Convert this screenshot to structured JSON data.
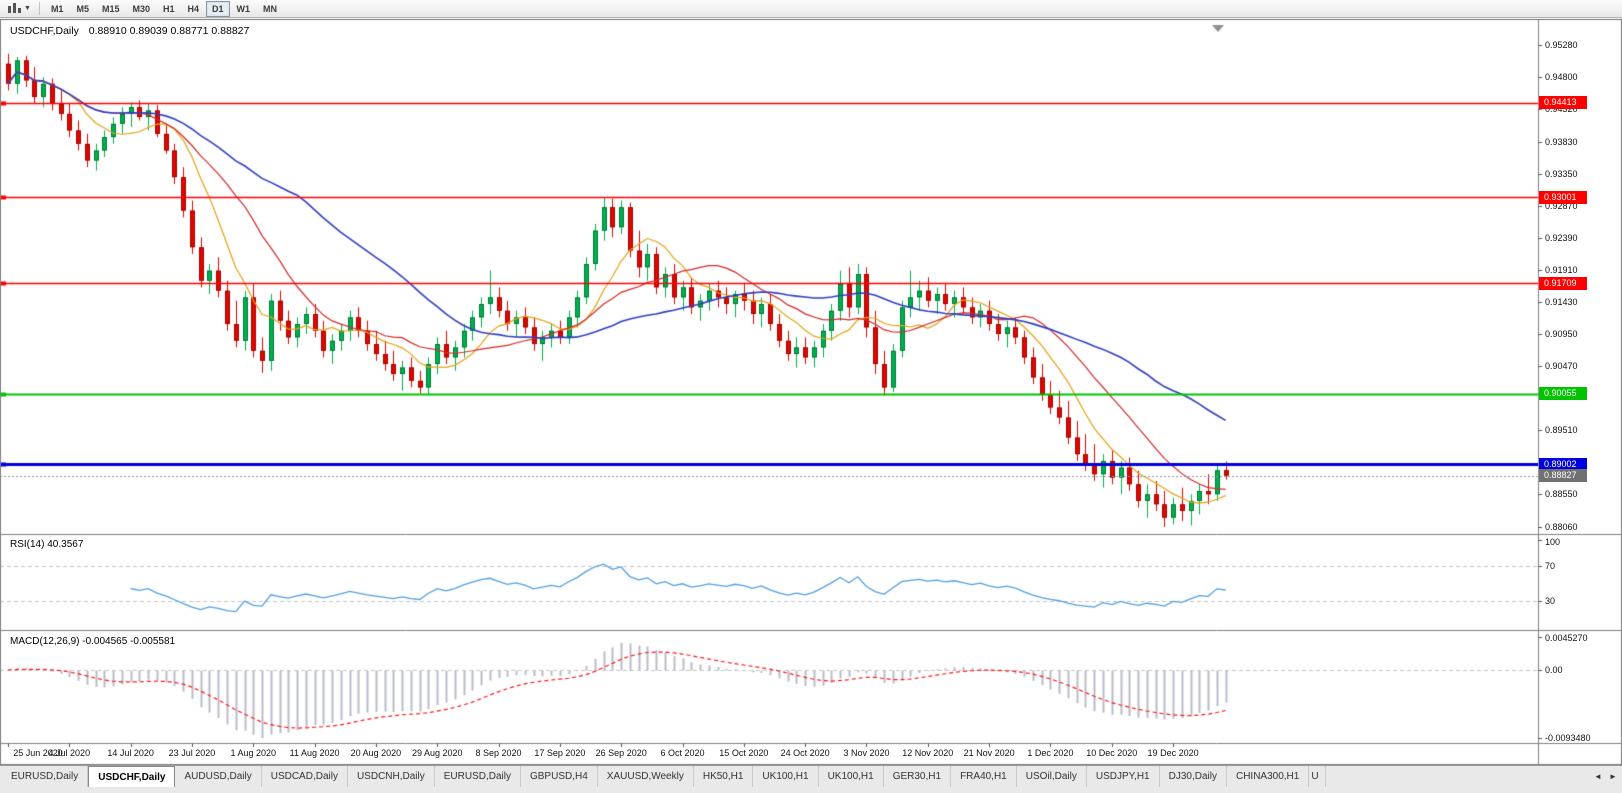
{
  "toolbar": {
    "timeframes": [
      "M1",
      "M5",
      "M15",
      "M30",
      "H1",
      "H4",
      "D1",
      "W1",
      "MN"
    ],
    "active_timeframe": "D1"
  },
  "chart": {
    "symbol_label": "USDCHF,Daily",
    "ohlc": "0.88910 0.89039 0.88771 0.88827"
  },
  "tabs": {
    "scroll_left_icon": "◄",
    "scroll_right_icon": "►",
    "items": [
      {
        "label": "EURUSD,Daily"
      },
      {
        "label": "USDCHF,Daily",
        "active": true
      },
      {
        "label": "AUDUSD,Daily"
      },
      {
        "label": "USDCAD,Daily"
      },
      {
        "label": "USDCNH,Daily"
      },
      {
        "label": "EURUSD,Daily"
      },
      {
        "label": "GBPUSD,H4"
      },
      {
        "label": "XAUUSD,Weekly"
      },
      {
        "label": "HK50,H1"
      },
      {
        "label": "UK100,H1"
      },
      {
        "label": "UK100,H1"
      },
      {
        "label": "GER30,H1"
      },
      {
        "label": "FRA40,H1"
      },
      {
        "label": "USOil,Daily"
      },
      {
        "label": "USDJPY,H1"
      },
      {
        "label": "DJ30,Daily"
      },
      {
        "label": "CHINA300,H1"
      },
      {
        "label": "U",
        "truncated": true
      }
    ]
  },
  "chart_data": {
    "type": "candlestick",
    "symbol": "USDCHF",
    "timeframe": "Daily",
    "price_range": [
      0.8797,
      0.9564
    ],
    "up_color": "#00b050",
    "down_color": "#e10600",
    "y_ticks": [
      "0.95280",
      "0.94800",
      "0.94320",
      "0.93830",
      "0.93350",
      "0.92870",
      "0.92390",
      "0.91910",
      "0.91430",
      "0.90950",
      "0.90470",
      "0.89510",
      "0.88550",
      "0.88060"
    ],
    "x_labels": [
      "25 Jun 2020",
      "4 Jul 2020",
      "14 Jul 2020",
      "23 Jul 2020",
      "1 Aug 2020",
      "11 Aug 2020",
      "20 Aug 2020",
      "29 Aug 2020",
      "8 Sep 2020",
      "17 Sep 2020",
      "26 Sep 2020",
      "6 Oct 2020",
      "15 Oct 2020",
      "24 Oct 2020",
      "3 Nov 2020",
      "12 Nov 2020",
      "21 Nov 2020",
      "1 Dec 2020",
      "10 Dec 2020",
      "19 Dec 2020"
    ],
    "bars_per_label": 7,
    "overlays": [
      {
        "name": "MA fast",
        "type": "sma",
        "period": 8,
        "color": "#e6a117"
      },
      {
        "name": "MA medium",
        "type": "sma",
        "period": 16,
        "color": "#d42b2b"
      },
      {
        "name": "MA slow",
        "type": "sma",
        "period": 34,
        "color": "#3040c0"
      }
    ],
    "hlines": [
      {
        "price": 0.94413,
        "label": "0.94413",
        "color": "#ff0000",
        "width": 1.5
      },
      {
        "price": 0.93001,
        "label": "0.93001",
        "color": "#ff0000",
        "width": 1.5
      },
      {
        "price": 0.91709,
        "label": "0.91709",
        "color": "#ff0000",
        "width": 1.5
      },
      {
        "price": 0.90055,
        "label": "0.90055",
        "color": "#00c400",
        "width": 2
      },
      {
        "price": 0.89002,
        "label": "0.89002",
        "color": "#0000e0",
        "width": 3
      }
    ],
    "bid": {
      "price": 0.88827,
      "label": "0.88827",
      "color": "#707070"
    },
    "indicators": [
      {
        "type": "rsi",
        "label": "RSI(14) 40.3567",
        "period": 14,
        "current": 40.3567,
        "scale": [
          "100",
          "70",
          "30"
        ],
        "level_lines": [
          70,
          30
        ],
        "range": [
          0,
          100
        ],
        "line_color": "#539fe0"
      },
      {
        "type": "macd",
        "label": "MACD(12,26,9) -0.004565 -0.005581",
        "fast": 12,
        "slow": 26,
        "signal": 9,
        "current_macd": -0.004565,
        "current_signal": -0.005581,
        "scale": [
          "0.0045270",
          "0.00",
          "-0.0093480"
        ],
        "range": [
          -0.009348,
          0.004527
        ],
        "histogram_color": "#b9bcc7",
        "signal_color": "#ff1a1a"
      }
    ],
    "candles": [
      [
        0.95,
        0.9515,
        0.946,
        0.947
      ],
      [
        0.947,
        0.951,
        0.9455,
        0.9505
      ],
      [
        0.9505,
        0.9512,
        0.9465,
        0.9475
      ],
      [
        0.9475,
        0.9495,
        0.944,
        0.945
      ],
      [
        0.945,
        0.948,
        0.9435,
        0.947
      ],
      [
        0.947,
        0.9478,
        0.943,
        0.944
      ],
      [
        0.944,
        0.946,
        0.9415,
        0.9425
      ],
      [
        0.9425,
        0.944,
        0.939,
        0.94
      ],
      [
        0.94,
        0.9415,
        0.937,
        0.938
      ],
      [
        0.938,
        0.9395,
        0.9345,
        0.9355
      ],
      [
        0.9355,
        0.938,
        0.934,
        0.937
      ],
      [
        0.937,
        0.94,
        0.936,
        0.939
      ],
      [
        0.939,
        0.942,
        0.938,
        0.941
      ],
      [
        0.941,
        0.9435,
        0.9395,
        0.9425
      ],
      [
        0.9425,
        0.9442,
        0.9405,
        0.9435
      ],
      [
        0.9435,
        0.9445,
        0.9415,
        0.942
      ],
      [
        0.942,
        0.9441,
        0.94,
        0.943
      ],
      [
        0.943,
        0.9438,
        0.939,
        0.9395
      ],
      [
        0.9395,
        0.941,
        0.9365,
        0.937
      ],
      [
        0.937,
        0.938,
        0.932,
        0.933
      ],
      [
        0.933,
        0.9345,
        0.927,
        0.928
      ],
      [
        0.928,
        0.9295,
        0.9215,
        0.9225
      ],
      [
        0.9225,
        0.924,
        0.9165,
        0.9175
      ],
      [
        0.9175,
        0.92,
        0.9155,
        0.919
      ],
      [
        0.919,
        0.921,
        0.915,
        0.916
      ],
      [
        0.916,
        0.9175,
        0.91,
        0.911
      ],
      [
        0.911,
        0.9145,
        0.9075,
        0.9085
      ],
      [
        0.9085,
        0.916,
        0.907,
        0.915
      ],
      [
        0.915,
        0.917,
        0.906,
        0.907
      ],
      [
        0.907,
        0.909,
        0.9037,
        0.9055
      ],
      [
        0.9055,
        0.9155,
        0.904,
        0.9145
      ],
      [
        0.9145,
        0.916,
        0.91,
        0.9115
      ],
      [
        0.9115,
        0.913,
        0.908,
        0.909
      ],
      [
        0.909,
        0.912,
        0.9075,
        0.911
      ],
      [
        0.911,
        0.9135,
        0.9095,
        0.9125
      ],
      [
        0.9125,
        0.914,
        0.909,
        0.91
      ],
      [
        0.91,
        0.9115,
        0.906,
        0.907
      ],
      [
        0.907,
        0.9095,
        0.905,
        0.9085
      ],
      [
        0.9085,
        0.911,
        0.907,
        0.91
      ],
      [
        0.91,
        0.913,
        0.9085,
        0.912
      ],
      [
        0.912,
        0.9135,
        0.909,
        0.91
      ],
      [
        0.91,
        0.9115,
        0.907,
        0.908
      ],
      [
        0.908,
        0.91,
        0.9055,
        0.9065
      ],
      [
        0.9065,
        0.9085,
        0.904,
        0.905
      ],
      [
        0.905,
        0.907,
        0.9025,
        0.9035
      ],
      [
        0.9035,
        0.9055,
        0.901,
        0.9045
      ],
      [
        0.9045,
        0.906,
        0.9015,
        0.9025
      ],
      [
        0.9025,
        0.904,
        0.9006,
        0.9015
      ],
      [
        0.9015,
        0.906,
        0.9005,
        0.905
      ],
      [
        0.905,
        0.909,
        0.9035,
        0.908
      ],
      [
        0.908,
        0.91,
        0.905,
        0.906
      ],
      [
        0.906,
        0.9085,
        0.904,
        0.9075
      ],
      [
        0.9075,
        0.911,
        0.906,
        0.91
      ],
      [
        0.91,
        0.913,
        0.9085,
        0.912
      ],
      [
        0.912,
        0.915,
        0.9105,
        0.914
      ],
      [
        0.914,
        0.919,
        0.9125,
        0.915
      ],
      [
        0.915,
        0.9165,
        0.912,
        0.913
      ],
      [
        0.913,
        0.9145,
        0.91,
        0.911
      ],
      [
        0.911,
        0.913,
        0.909,
        0.912
      ],
      [
        0.912,
        0.9135,
        0.9095,
        0.9105
      ],
      [
        0.9105,
        0.912,
        0.907,
        0.908
      ],
      [
        0.908,
        0.91,
        0.9055,
        0.909
      ],
      [
        0.909,
        0.911,
        0.9075,
        0.91
      ],
      [
        0.91,
        0.9115,
        0.908,
        0.909
      ],
      [
        0.909,
        0.913,
        0.908,
        0.912
      ],
      [
        0.912,
        0.916,
        0.9105,
        0.915
      ],
      [
        0.915,
        0.921,
        0.914,
        0.92
      ],
      [
        0.92,
        0.926,
        0.919,
        0.925
      ],
      [
        0.925,
        0.93,
        0.9235,
        0.9285
      ],
      [
        0.9285,
        0.9298,
        0.924,
        0.9255
      ],
      [
        0.9255,
        0.9295,
        0.9245,
        0.9285
      ],
      [
        0.9285,
        0.9292,
        0.921,
        0.922
      ],
      [
        0.922,
        0.925,
        0.918,
        0.9195
      ],
      [
        0.9195,
        0.923,
        0.9175,
        0.9215
      ],
      [
        0.9215,
        0.9225,
        0.9155,
        0.9165
      ],
      [
        0.9165,
        0.9195,
        0.915,
        0.9185
      ],
      [
        0.9185,
        0.92,
        0.914,
        0.915
      ],
      [
        0.915,
        0.9175,
        0.913,
        0.9165
      ],
      [
        0.9165,
        0.918,
        0.9125,
        0.9135
      ],
      [
        0.9135,
        0.9155,
        0.9115,
        0.9145
      ],
      [
        0.9145,
        0.917,
        0.913,
        0.916
      ],
      [
        0.916,
        0.9175,
        0.9135,
        0.915
      ],
      [
        0.915,
        0.9165,
        0.9125,
        0.914
      ],
      [
        0.914,
        0.916,
        0.912,
        0.9155
      ],
      [
        0.9155,
        0.917,
        0.913,
        0.9145
      ],
      [
        0.9145,
        0.916,
        0.911,
        0.9125
      ],
      [
        0.9125,
        0.915,
        0.9105,
        0.914
      ],
      [
        0.914,
        0.9155,
        0.91,
        0.911
      ],
      [
        0.911,
        0.9125,
        0.9075,
        0.9085
      ],
      [
        0.9085,
        0.91,
        0.9055,
        0.9065
      ],
      [
        0.9065,
        0.909,
        0.9045,
        0.9075
      ],
      [
        0.9075,
        0.909,
        0.905,
        0.906
      ],
      [
        0.906,
        0.9085,
        0.9045,
        0.9075
      ],
      [
        0.9075,
        0.911,
        0.906,
        0.91
      ],
      [
        0.91,
        0.914,
        0.9085,
        0.913
      ],
      [
        0.913,
        0.919,
        0.9115,
        0.917
      ],
      [
        0.917,
        0.9195,
        0.912,
        0.9135
      ],
      [
        0.9135,
        0.92,
        0.9125,
        0.9185
      ],
      [
        0.9185,
        0.9195,
        0.909,
        0.9105
      ],
      [
        0.9105,
        0.913,
        0.9035,
        0.905
      ],
      [
        0.905,
        0.907,
        0.9003,
        0.9015
      ],
      [
        0.9015,
        0.908,
        0.9008,
        0.907
      ],
      [
        0.907,
        0.9145,
        0.906,
        0.9135
      ],
      [
        0.9135,
        0.919,
        0.912,
        0.915
      ],
      [
        0.915,
        0.9175,
        0.913,
        0.916
      ],
      [
        0.916,
        0.918,
        0.9135,
        0.9145
      ],
      [
        0.9145,
        0.9165,
        0.9125,
        0.9155
      ],
      [
        0.9155,
        0.917,
        0.913,
        0.914
      ],
      [
        0.914,
        0.916,
        0.912,
        0.915
      ],
      [
        0.915,
        0.9165,
        0.9125,
        0.9135
      ],
      [
        0.9135,
        0.915,
        0.911,
        0.912
      ],
      [
        0.912,
        0.914,
        0.9105,
        0.913
      ],
      [
        0.913,
        0.9145,
        0.91,
        0.911
      ],
      [
        0.911,
        0.9125,
        0.9085,
        0.9095
      ],
      [
        0.9095,
        0.9115,
        0.9075,
        0.9105
      ],
      [
        0.9105,
        0.912,
        0.908,
        0.909
      ],
      [
        0.909,
        0.91,
        0.905,
        0.906
      ],
      [
        0.906,
        0.9075,
        0.902,
        0.903
      ],
      [
        0.903,
        0.905,
        0.8995,
        0.9005
      ],
      [
        0.9005,
        0.9025,
        0.8975,
        0.8985
      ],
      [
        0.8985,
        0.901,
        0.896,
        0.897
      ],
      [
        0.897,
        0.8995,
        0.893,
        0.894
      ],
      [
        0.894,
        0.8965,
        0.8905,
        0.8915
      ],
      [
        0.8915,
        0.8945,
        0.889,
        0.89
      ],
      [
        0.89,
        0.893,
        0.8875,
        0.8885
      ],
      [
        0.8885,
        0.8915,
        0.8865,
        0.8905
      ],
      [
        0.8905,
        0.892,
        0.887,
        0.888
      ],
      [
        0.888,
        0.8905,
        0.8855,
        0.8895
      ],
      [
        0.8895,
        0.891,
        0.886,
        0.887
      ],
      [
        0.887,
        0.889,
        0.8835,
        0.8845
      ],
      [
        0.8845,
        0.887,
        0.882,
        0.8855
      ],
      [
        0.8855,
        0.8875,
        0.883,
        0.884
      ],
      [
        0.884,
        0.886,
        0.8806,
        0.882
      ],
      [
        0.882,
        0.885,
        0.881,
        0.884
      ],
      [
        0.884,
        0.8865,
        0.8815,
        0.883
      ],
      [
        0.883,
        0.8855,
        0.8808,
        0.8845
      ],
      [
        0.8845,
        0.887,
        0.8825,
        0.886
      ],
      [
        0.886,
        0.8885,
        0.884,
        0.8855
      ],
      [
        0.8855,
        0.89,
        0.8845,
        0.8891
      ],
      [
        0.8891,
        0.8904,
        0.8877,
        0.8883
      ]
    ]
  }
}
